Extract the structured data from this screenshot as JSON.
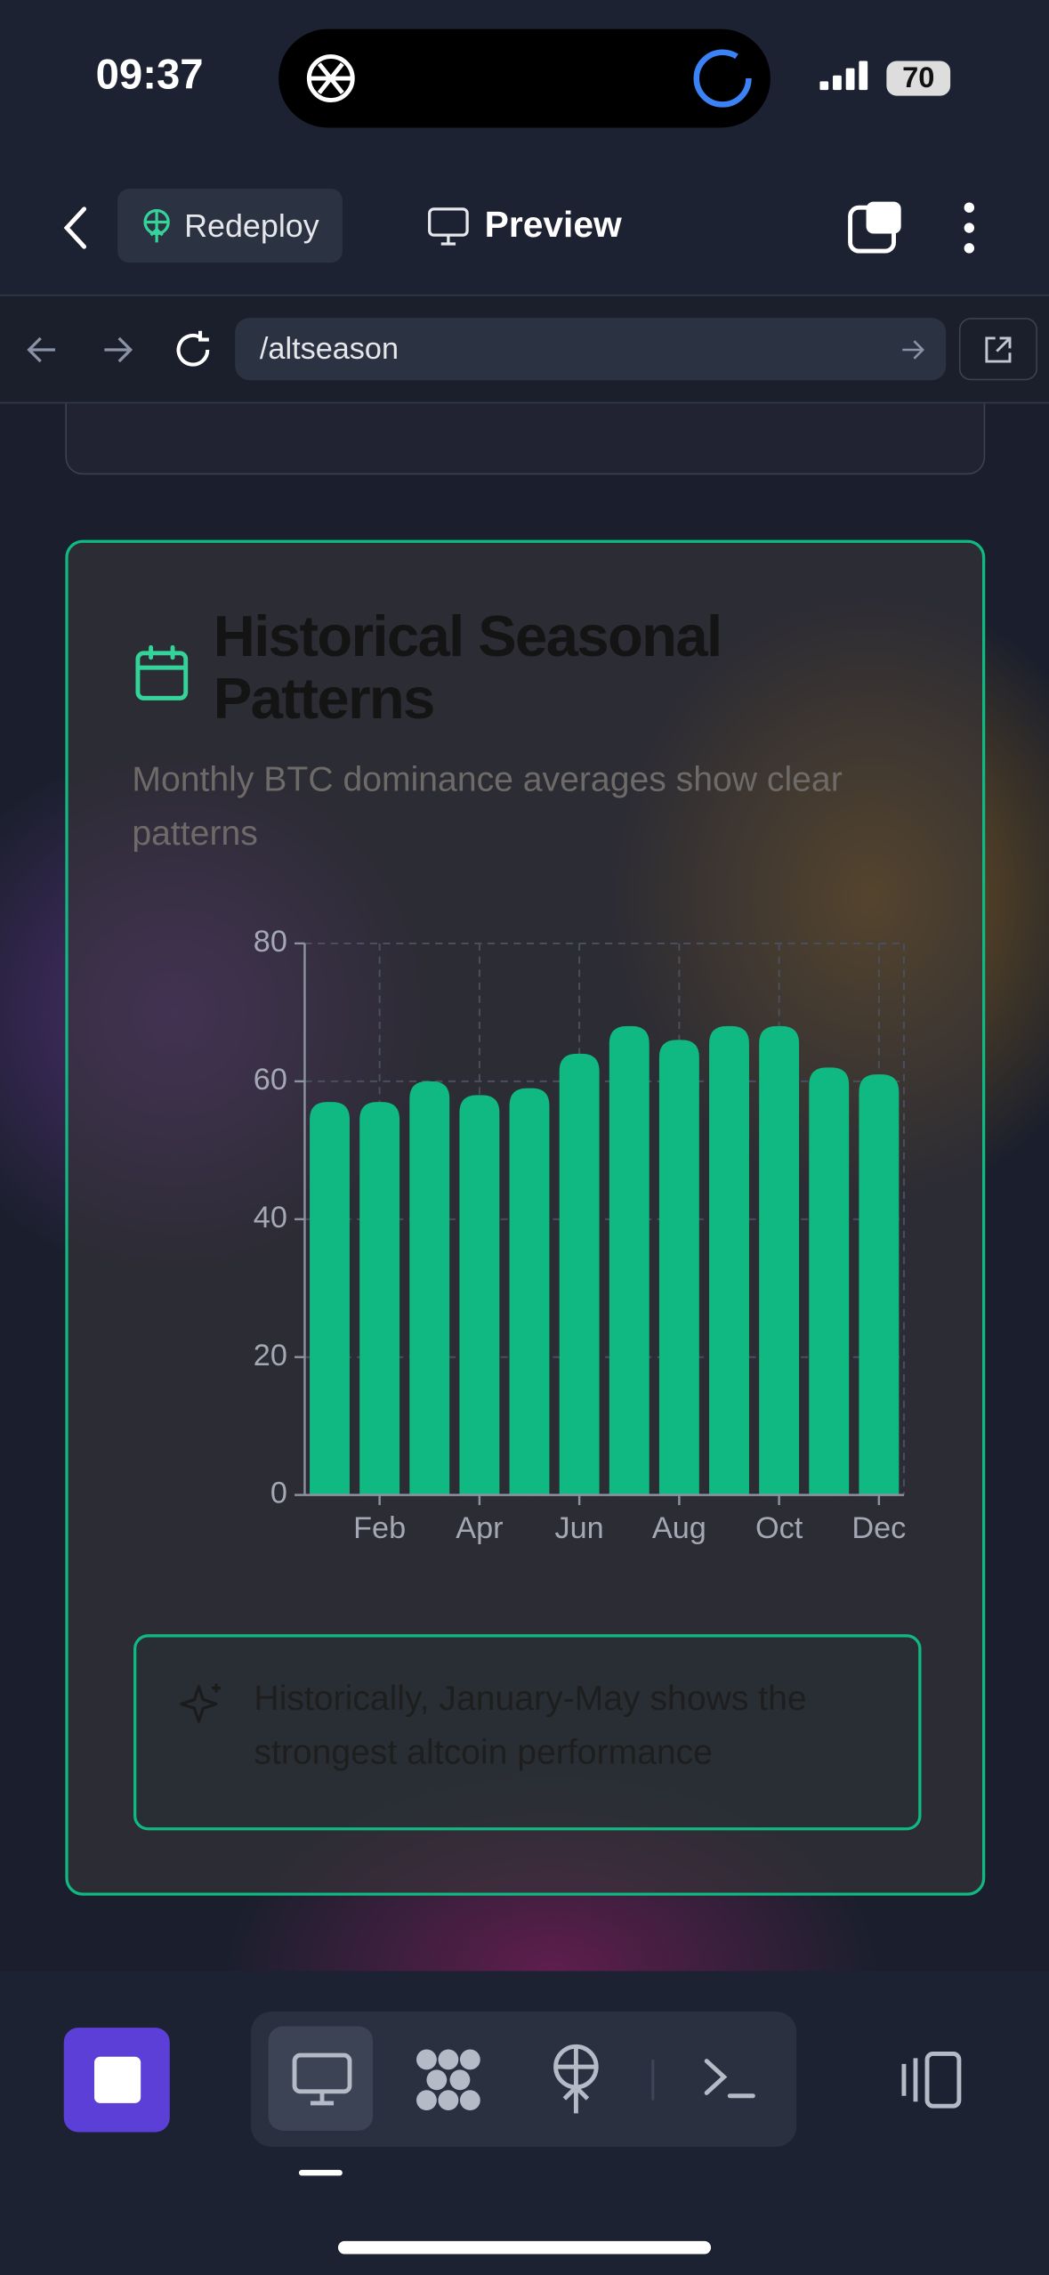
{
  "status_bar": {
    "time": "09:37",
    "battery": "70"
  },
  "toolbar": {
    "redeploy": "Redeploy",
    "preview": "Preview"
  },
  "address_bar": {
    "url": "/altseason"
  },
  "card": {
    "title": "Historical Seasonal Patterns",
    "subtitle": "Monthly BTC dominance averages show clear patterns",
    "insight": "Historically, January-May shows the strongest altcoin performance"
  },
  "chart_data": {
    "type": "bar",
    "categories": [
      null,
      "Feb",
      null,
      "Apr",
      null,
      "Jun",
      null,
      "Aug",
      null,
      "Oct",
      null,
      "Dec"
    ],
    "values": [
      57,
      57,
      60,
      58,
      59,
      64,
      68,
      66,
      68,
      68,
      62,
      61
    ],
    "color": "#10b981",
    "ylim": [
      0,
      80
    ],
    "yticks": [
      0,
      20,
      40,
      60,
      80
    ],
    "grid": true
  }
}
